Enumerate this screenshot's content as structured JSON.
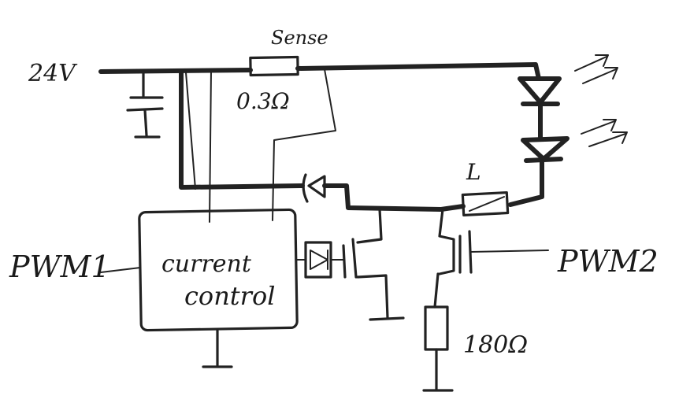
{
  "labels": {
    "supply": "24V",
    "sense_name": "Sense",
    "sense_value": "0.3Ω",
    "inductor": "L",
    "pwm1": "PWM1",
    "pwm2": "PWM2",
    "block_line1": "current",
    "block_line2": "control",
    "resistor_value": "180Ω"
  }
}
